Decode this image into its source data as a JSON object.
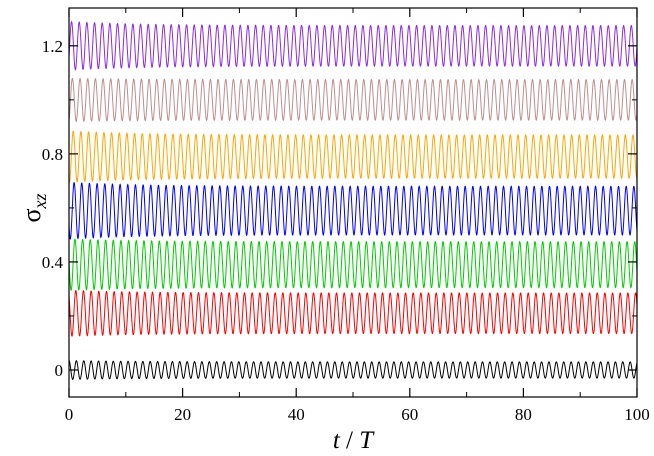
{
  "chart_data": {
    "type": "line",
    "xlabel_main": "t",
    "xlabel_sep": " / ",
    "xlabel_unit": "T",
    "ylabel_main": "σ",
    "ylabel_sub": "xz",
    "xlim": [
      0,
      100
    ],
    "ylim": [
      -0.1,
      1.34
    ],
    "xticks": [
      0,
      20,
      40,
      60,
      80,
      100
    ],
    "yticks": [
      0,
      0.4,
      0.8,
      1.2
    ],
    "ytick_labels": [
      "0",
      "0.4",
      "0.8",
      "1.2"
    ],
    "grid": false,
    "legend": "none",
    "series": [
      {
        "color": "#000000",
        "center": 0.0,
        "amplitude": 0.03,
        "amp_early": 0.035,
        "period": 1.3
      },
      {
        "color": "#ff0000",
        "center": 0.21,
        "amplitude": 0.075,
        "amp_early": 0.085,
        "period": 1.35
      },
      {
        "color": "#00cc00",
        "center": 0.39,
        "amplitude": 0.085,
        "amp_early": 0.095,
        "period": 1.35
      },
      {
        "color": "#0000ff",
        "center": 0.59,
        "amplitude": 0.09,
        "amp_early": 0.105,
        "period": 1.35
      },
      {
        "color": "#ffa500",
        "center": 0.79,
        "amplitude": 0.08,
        "amp_early": 0.095,
        "period": 1.35
      },
      {
        "color": "#bc8f8f",
        "center": 1.0,
        "amplitude": 0.075,
        "amp_early": 0.08,
        "period": 1.35
      },
      {
        "color": "#8a2be2",
        "center": 1.2,
        "amplitude": 0.075,
        "amp_early": 0.09,
        "period": 1.35
      }
    ]
  }
}
